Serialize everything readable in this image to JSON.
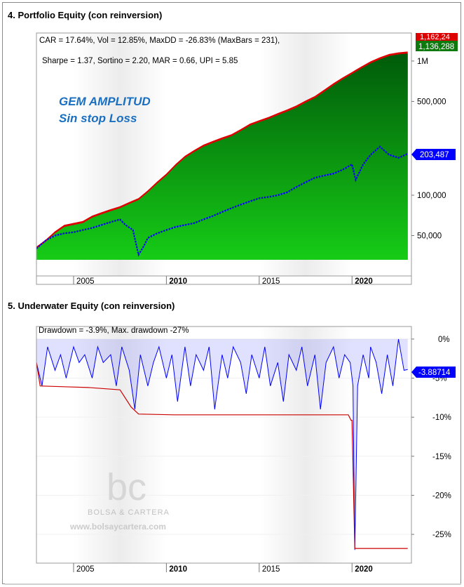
{
  "chart_data": [
    {
      "type": "area",
      "title": "4. Portfolio Equity (con reinversion)",
      "annotations": {
        "stats_line1": "CAR = 17.64%, Vol = 12.85%, MaxDD = -26.83% (MaxBars = 231),",
        "stats_line2": "Sharpe = 1.37, Sortino = 2.20, MAR = 0.66, UPI = 5.85",
        "overlay_title": "GEM AMPLITUD",
        "overlay_subtitle": "Sin stop Loss"
      },
      "scale": "log",
      "ylim": [
        33000,
        1350000
      ],
      "xlim": [
        2003.0,
        2023.2
      ],
      "x_ticks": [
        2005,
        2010,
        2015,
        2020
      ],
      "x_tick_labels": [
        "2005",
        "2010",
        "2015",
        "2020"
      ],
      "y_ticks": [
        50000,
        100000,
        500000,
        1000000
      ],
      "y_tick_labels": [
        "50,000",
        "100,000",
        "500,000",
        "1M"
      ],
      "value_labels": {
        "peak": "1,162,24",
        "equity": "1,136,288",
        "benchmark": "203,487"
      },
      "series": [
        {
          "x": [
            2003.0,
            2003.5,
            2004.0,
            2004.5,
            2005.0,
            2005.5,
            2006.0,
            2006.5,
            2007.0,
            2007.5,
            2008.0,
            2008.5,
            2009.0,
            2009.5,
            2010.0,
            2010.5,
            2011.0,
            2011.5,
            2012.0,
            2012.5,
            2013.0,
            2013.5,
            2014.0,
            2014.5,
            2015.0,
            2015.5,
            2016.0,
            2016.5,
            2017.0,
            2017.5,
            2018.0,
            2018.5,
            2019.0,
            2019.5,
            2020.0,
            2020.5,
            2021.0,
            2021.5,
            2022.0,
            2022.5,
            2023.0
          ],
          "values": [
            40000,
            45000,
            52000,
            58000,
            60000,
            62000,
            68000,
            72000,
            76000,
            80000,
            86000,
            92000,
            105000,
            122000,
            140000,
            165000,
            190000,
            210000,
            230000,
            245000,
            260000,
            275000,
            300000,
            330000,
            350000,
            370000,
            395000,
            420000,
            450000,
            490000,
            530000,
            590000,
            660000,
            730000,
            800000,
            880000,
            960000,
            1030000,
            1090000,
            1120000,
            1136288
          ]
        },
        {
          "x": [
            2003.0,
            2003.5,
            2004.0,
            2004.5,
            2005.0,
            2005.5,
            2006.0,
            2006.5,
            2007.0,
            2007.5,
            2007.8,
            2008.2,
            2008.5,
            2008.8,
            2009.0,
            2009.5,
            2010.0,
            2010.5,
            2011.0,
            2011.5,
            2012.0,
            2012.5,
            2013.0,
            2013.5,
            2014.0,
            2014.5,
            2015.0,
            2015.5,
            2016.0,
            2016.5,
            2017.0,
            2017.5,
            2018.0,
            2018.5,
            2019.0,
            2019.5,
            2020.0,
            2020.2,
            2020.6,
            2021.0,
            2021.5,
            2022.0,
            2022.5,
            2023.0
          ],
          "values": [
            40000,
            46000,
            50000,
            52000,
            53000,
            55000,
            57000,
            60000,
            63000,
            66000,
            60000,
            55000,
            36000,
            42000,
            48000,
            52000,
            55000,
            58000,
            60000,
            62000,
            66000,
            70000,
            75000,
            80000,
            85000,
            90000,
            95000,
            97000,
            100000,
            105000,
            115000,
            125000,
            135000,
            140000,
            145000,
            155000,
            170000,
            130000,
            170000,
            200000,
            230000,
            200000,
            190000,
            203487
          ]
        }
      ]
    },
    {
      "type": "line",
      "title": "5. Underwater Equity (con reinversion)",
      "annotation": "Drawdown = -3.9%, Max. drawdown -27%",
      "ylim": [
        -28.5,
        0.8
      ],
      "xlim": [
        2003.0,
        2023.2
      ],
      "x_ticks": [
        2005,
        2010,
        2015,
        2020
      ],
      "x_tick_labels": [
        "2005",
        "2010",
        "2015",
        "2020"
      ],
      "y_ticks": [
        0,
        -5,
        -10,
        -15,
        -20,
        -25
      ],
      "y_tick_labels": [
        "0%",
        "-5%",
        "-10%",
        "-15%",
        "-20%",
        "-25%"
      ],
      "value_label": "-3.88714",
      "series": [
        {
          "x": [
            2003.0,
            2003.3,
            2003.6,
            2004.0,
            2004.3,
            2004.6,
            2005.0,
            2005.3,
            2005.6,
            2006.0,
            2006.3,
            2006.6,
            2007.0,
            2007.3,
            2007.6,
            2008.0,
            2008.3,
            2008.6,
            2009.0,
            2009.3,
            2009.6,
            2010.0,
            2010.3,
            2010.6,
            2011.0,
            2011.3,
            2011.6,
            2012.0,
            2012.3,
            2012.6,
            2013.0,
            2013.3,
            2013.6,
            2014.0,
            2014.3,
            2014.6,
            2015.0,
            2015.3,
            2015.6,
            2016.0,
            2016.3,
            2016.6,
            2017.0,
            2017.3,
            2017.6,
            2018.0,
            2018.3,
            2018.6,
            2019.0,
            2019.3,
            2019.6,
            2019.9,
            2020.05,
            2020.15,
            2020.3,
            2020.6,
            2020.9,
            2021.0,
            2021.3,
            2021.6,
            2021.9,
            2022.2,
            2022.5,
            2022.8,
            2023.0
          ],
          "values": [
            -3,
            -6,
            -1,
            -4,
            -2,
            -5,
            -1,
            -3,
            -2,
            -5,
            -1,
            -3,
            -2,
            -6,
            -1,
            -4,
            -9,
            -2,
            -6,
            -3,
            -1,
            -5,
            -2,
            -8,
            -1,
            -6,
            -2,
            -4,
            -1,
            -9,
            -2,
            -5,
            -1,
            -3,
            -7,
            -2,
            -5,
            -1,
            -6,
            -3,
            -8,
            -2,
            -4,
            -1,
            -6,
            -2,
            -9,
            -3,
            -1,
            -5,
            -2,
            -3,
            -6,
            -27,
            -6,
            -2,
            -5,
            -1,
            -3,
            -7,
            -2,
            -6,
            0,
            -4,
            -3.9
          ]
        },
        {
          "x": [
            2003.0,
            2003.2,
            2004.5,
            2005.8,
            2007.5,
            2008.1,
            2008.5,
            2010.4,
            2012.0,
            2019.8,
            2019.95,
            2020.0,
            2020.15,
            2023.0
          ],
          "values": [
            -3,
            -6,
            -6.1,
            -6.2,
            -6.5,
            -8.7,
            -9.6,
            -9.7,
            -9.7,
            -9.7,
            -10.4,
            -10.4,
            -26.8,
            -26.8
          ]
        }
      ]
    }
  ],
  "watermark": {
    "brand": "BOLSA & CARTERA",
    "url": "www.bolsaycartera.com",
    "monogram": "bc"
  },
  "colors": {
    "equity_area_top": "#005a0a",
    "equity_area_bottom": "#16cc16",
    "peak_fill": "#dd0000",
    "benchmark_line": "#0000ff",
    "drawdown_line": "#0000ff",
    "max_drawdown_line": "#cc0000",
    "overlay_text": "#1a6fc0"
  }
}
